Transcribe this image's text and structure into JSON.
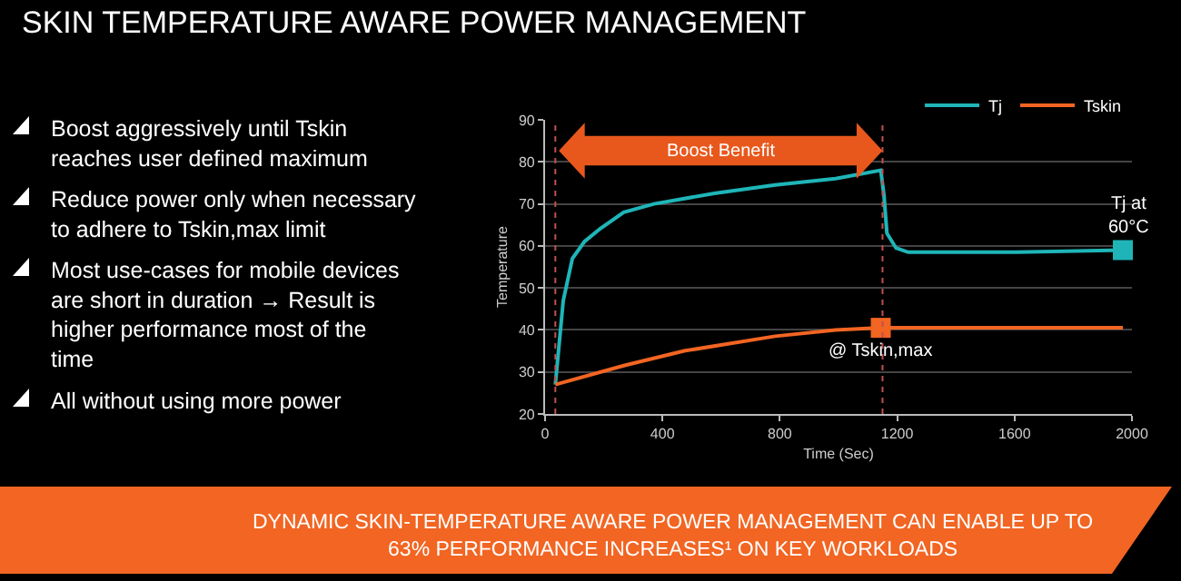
{
  "chart_data": {
    "type": "line",
    "title": "SKIN TEMPERATURE AWARE POWER MANAGEMENT",
    "xlabel": "Time (Sec)",
    "ylabel": "Temperature",
    "xlim": [
      0,
      2000
    ],
    "xticks": [
      0,
      400,
      800,
      1200,
      1600,
      2000
    ],
    "ylim": [
      20,
      90
    ],
    "yticks": [
      20,
      30,
      40,
      50,
      60,
      70,
      80,
      90
    ],
    "grid": "y",
    "legend": "top right",
    "line_style": "solid",
    "series": [
      {
        "name": "Tj",
        "color": "#1fb5b8",
        "x": [
          35,
          62,
          93,
          134,
          186,
          268,
          371,
          577,
          784,
          990,
          1144,
          1155,
          1165,
          1196,
          1237,
          1608,
          1969
        ],
        "values": [
          27,
          47,
          57,
          61,
          64,
          68,
          70,
          72.5,
          74.5,
          76,
          78,
          72,
          63,
          59.5,
          58.5,
          58.5,
          59
        ]
      },
      {
        "name": "Tskin",
        "color": "#f26522",
        "x": [
          35,
          268,
          474,
          784,
          990,
          1144,
          1402,
          1969
        ],
        "values": [
          27,
          31.5,
          35,
          38.5,
          40,
          40.5,
          40.5,
          40.5
        ]
      },
      {
        "type": "scatter",
        "marker": "square",
        "color": "#1fb5b8",
        "x": [
          1969
        ],
        "values": [
          59
        ]
      },
      {
        "type": "scatter",
        "marker": "square",
        "color": "#f26522",
        "x": [
          1144
        ],
        "values": [
          40.5
        ]
      }
    ],
    "ref_lines": [
      {
        "axis": "x",
        "value": 35,
        "color": "#c0504d",
        "line_style": "dotted"
      },
      {
        "axis": "x",
        "value": 1150,
        "color": "#c0504d",
        "line_style": "dotted"
      }
    ],
    "annotations": [
      "Boost aggressively until Tskin\nreaches user defined maximum",
      "Reduce power only when necessary\nto adhere to Tskin,max limit",
      "Most use-cases for mobile devices\nare short in duration → Result is\nhigher performance most of the\ntime",
      "All without using more power",
      "Boost Benefit",
      "Tj at\n60°C",
      {
        "text": "@ Tskin,max",
        "x": 1144,
        "y": 35
      },
      "DYNAMIC SKIN-TEMPERATURE AWARE POWER MANAGEMENT CAN ENABLE UP TO\n63% PERFORMANCE INCREASES¹ ON KEY WORKLOADS"
    ]
  }
}
